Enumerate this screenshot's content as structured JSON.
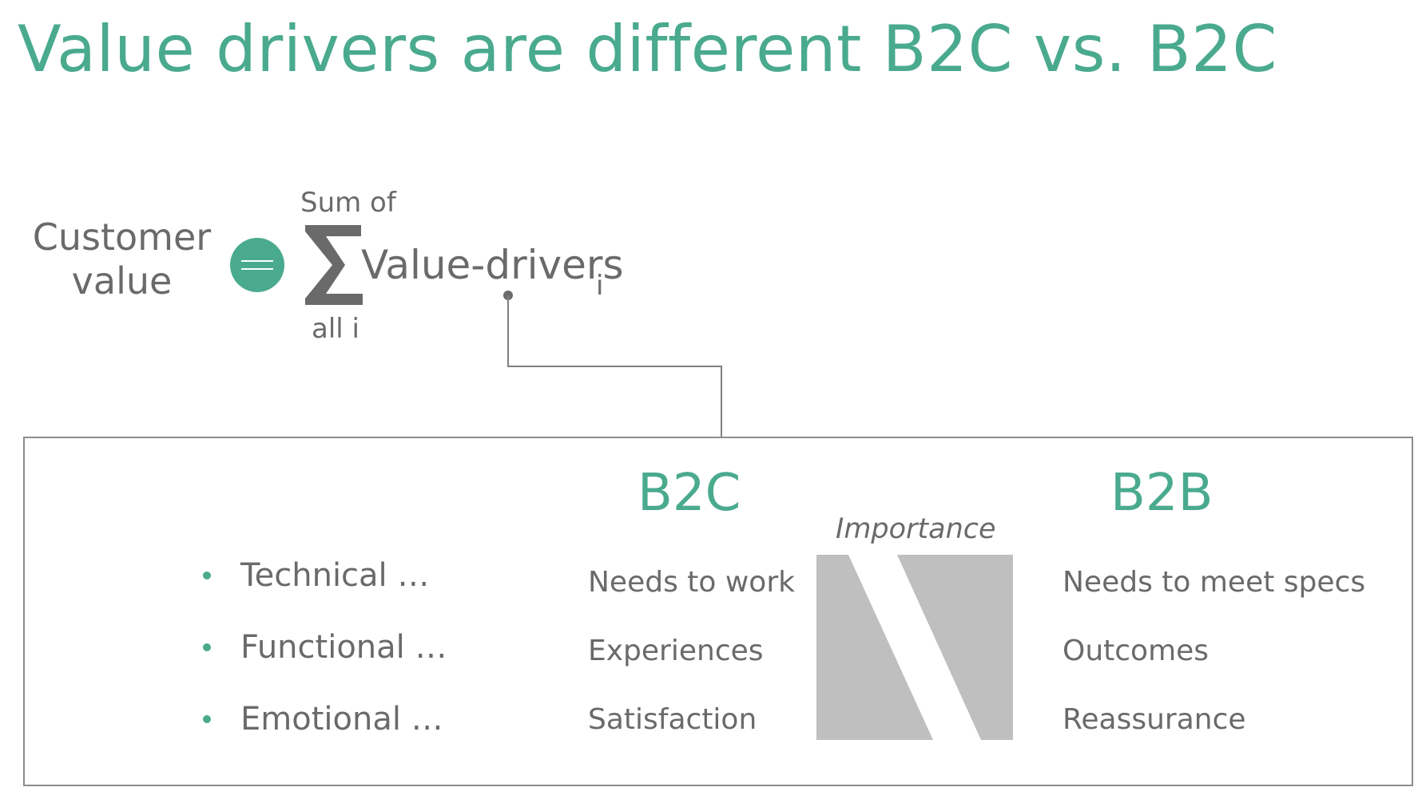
{
  "title": "Value drivers are different B2C vs. B2C",
  "equation": {
    "lhs_line1": "Customer",
    "lhs_line2": "value",
    "operator": "equals",
    "sum_top": "Sum of",
    "sum_bottom": "all i",
    "term": "Value-drivers",
    "subscript": "i"
  },
  "panel": {
    "bullets": [
      "Technical …",
      "Functional …",
      "Emotional …"
    ],
    "b2c": {
      "heading": "B2C",
      "items": [
        "Needs to work",
        "Experiences",
        "Satisfaction"
      ]
    },
    "importance_label": "Importance",
    "b2b": {
      "heading": "B2B",
      "items": [
        "Needs to meet specs",
        "Outcomes",
        "Reassurance"
      ]
    }
  },
  "colors": {
    "accent": "#4aaa8e",
    "text": "#6a6a6a",
    "importance_fill": "#bfbfbf",
    "border": "#8c8c8c"
  }
}
